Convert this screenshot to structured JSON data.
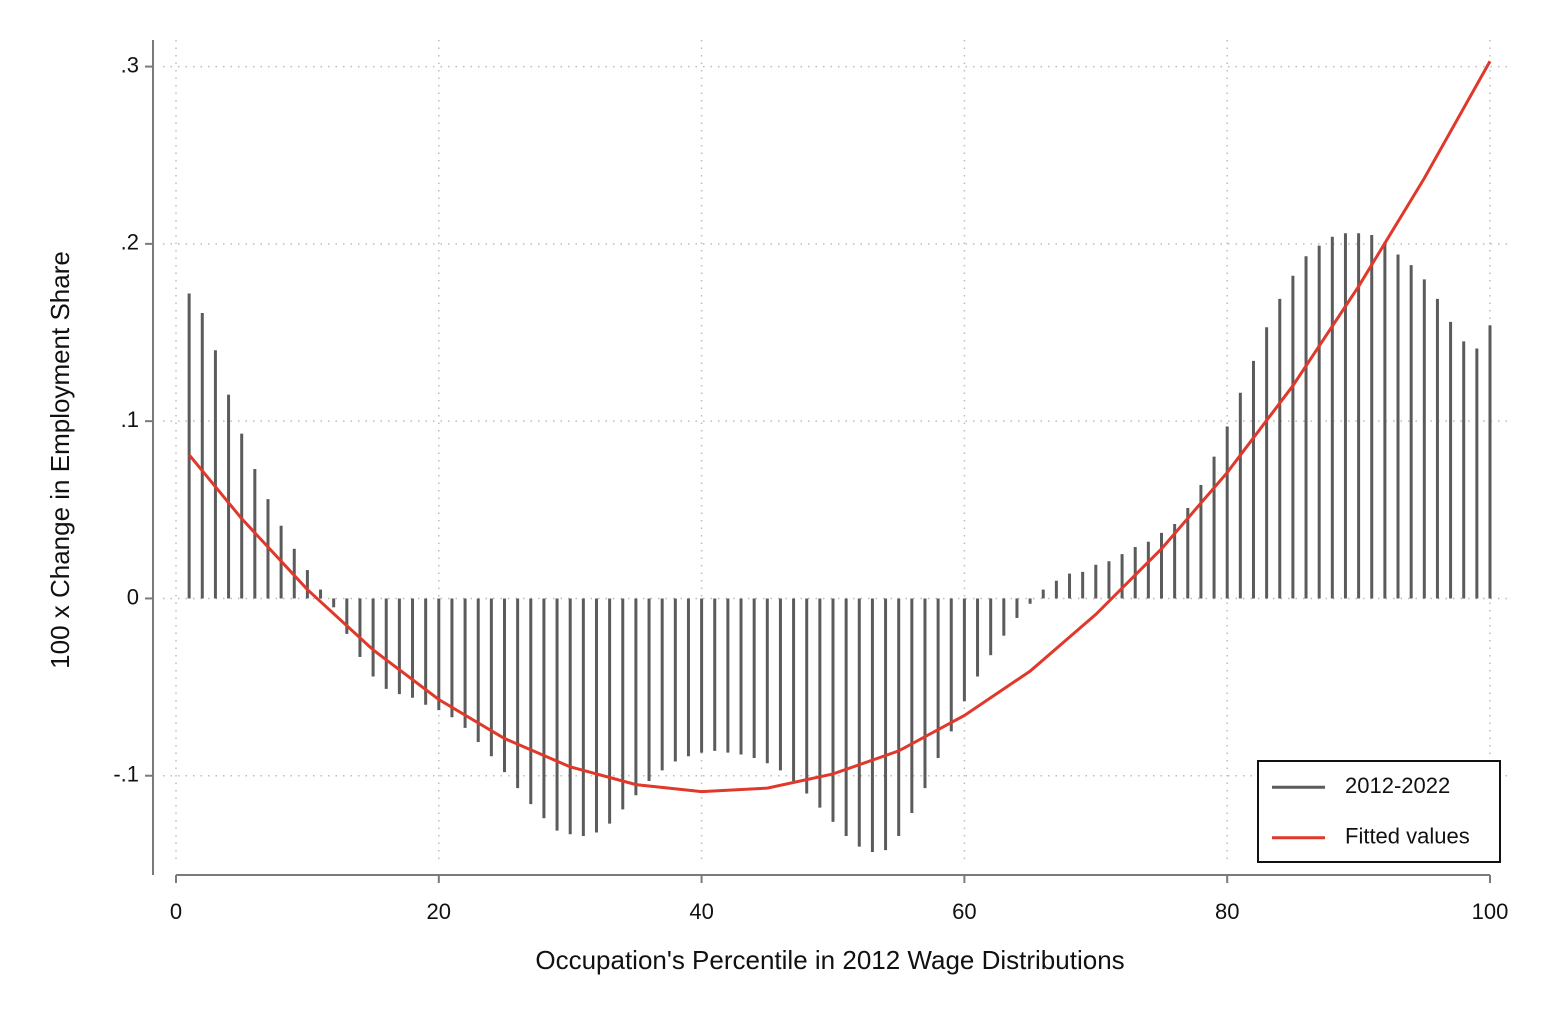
{
  "chart_data": {
    "type": "spike",
    "xlabel": "Occupation's Percentile in 2012 Wage Distributions",
    "ylabel": "100 x Change in Employment Share",
    "xlim": [
      0,
      100
    ],
    "ylim": [
      -0.156,
      0.315
    ],
    "xticks": [
      0,
      20,
      40,
      60,
      80,
      100
    ],
    "yticks": [
      {
        "value": 0.3,
        "label": ".3"
      },
      {
        "value": 0.2,
        "label": ".2"
      },
      {
        "value": 0.1,
        "label": ".1"
      },
      0,
      {
        "value": -0.1,
        "label": "-.1"
      }
    ],
    "grid": true,
    "legend": "bottom-right",
    "series": [
      {
        "name": "2012-2022",
        "type": "spike",
        "color": "#5b5b5b",
        "x": [
          1,
          2,
          3,
          4,
          5,
          6,
          7,
          8,
          9,
          10,
          11,
          12,
          13,
          14,
          15,
          16,
          17,
          18,
          19,
          20,
          21,
          22,
          23,
          24,
          25,
          26,
          27,
          28,
          29,
          30,
          31,
          32,
          33,
          34,
          35,
          36,
          37,
          38,
          39,
          40,
          41,
          42,
          43,
          44,
          45,
          46,
          47,
          48,
          49,
          50,
          51,
          52,
          53,
          54,
          55,
          56,
          57,
          58,
          59,
          60,
          61,
          62,
          63,
          64,
          65,
          66,
          67,
          68,
          69,
          70,
          71,
          72,
          73,
          74,
          75,
          76,
          77,
          78,
          79,
          80,
          81,
          82,
          83,
          84,
          85,
          86,
          87,
          88,
          89,
          90,
          91,
          92,
          93,
          94,
          95,
          96,
          97,
          98,
          99,
          100
        ],
        "values": [
          0.172,
          0.161,
          0.14,
          0.115,
          0.093,
          0.073,
          0.056,
          0.041,
          0.028,
          0.016,
          0.005,
          -0.005,
          -0.02,
          -0.033,
          -0.044,
          -0.051,
          -0.054,
          -0.056,
          -0.06,
          -0.063,
          -0.067,
          -0.073,
          -0.081,
          -0.089,
          -0.098,
          -0.107,
          -0.116,
          -0.124,
          -0.131,
          -0.133,
          -0.134,
          -0.132,
          -0.127,
          -0.119,
          -0.111,
          -0.103,
          -0.097,
          -0.092,
          -0.089,
          -0.087,
          -0.086,
          -0.087,
          -0.088,
          -0.09,
          -0.093,
          -0.097,
          -0.103,
          -0.11,
          -0.118,
          -0.126,
          -0.134,
          -0.14,
          -0.143,
          -0.142,
          -0.134,
          -0.121,
          -0.107,
          -0.09,
          -0.075,
          -0.058,
          -0.044,
          -0.032,
          -0.021,
          -0.011,
          -0.003,
          0.005,
          0.01,
          0.014,
          0.015,
          0.019,
          0.021,
          0.025,
          0.029,
          0.032,
          0.037,
          0.042,
          0.051,
          0.064,
          0.08,
          0.097,
          0.116,
          0.134,
          0.153,
          0.169,
          0.182,
          0.193,
          0.199,
          0.204,
          0.206,
          0.206,
          0.205,
          0.201,
          0.194,
          0.188,
          0.18,
          0.169,
          0.156,
          0.145,
          0.141,
          0.154
        ]
      },
      {
        "name": "Fitted values",
        "type": "line",
        "color": "#e0382b",
        "x": [
          1,
          5,
          10,
          15,
          20,
          25,
          30,
          35,
          40,
          45,
          50,
          55,
          60,
          65,
          70,
          75,
          80,
          85,
          90,
          95,
          100
        ],
        "values": [
          0.081,
          0.045,
          0.005,
          -0.029,
          -0.057,
          -0.079,
          -0.095,
          -0.105,
          -0.109,
          -0.107,
          -0.099,
          -0.086,
          -0.066,
          -0.041,
          -0.009,
          0.028,
          0.071,
          0.12,
          0.176,
          0.237,
          0.303
        ]
      }
    ]
  }
}
